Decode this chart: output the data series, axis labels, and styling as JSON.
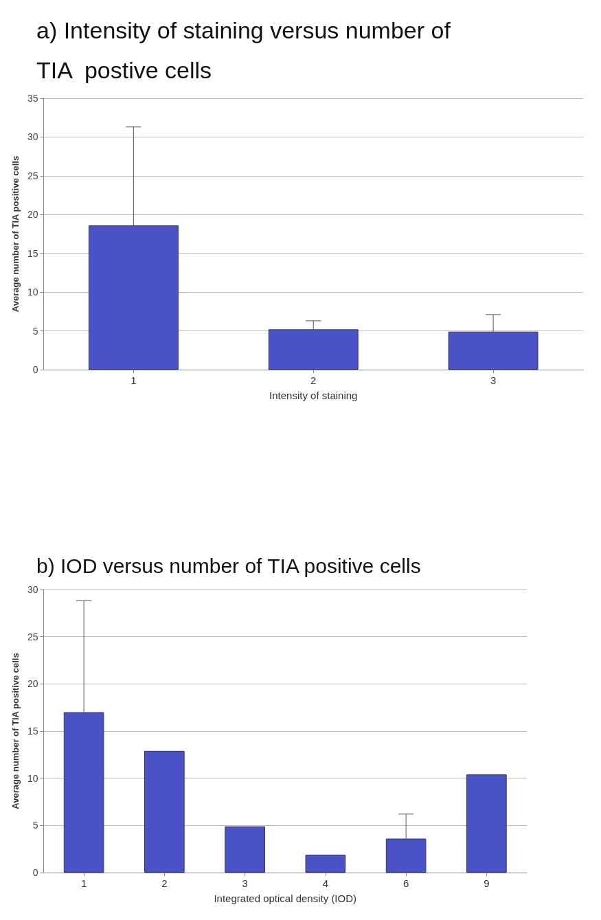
{
  "chart_data": [
    {
      "type": "bar",
      "title": "a) Intensity of staining versus number of\nTIA  postive cells",
      "xlabel": "Intensity of staining",
      "ylabel": "Average number of TIA positive cells",
      "categories": [
        "1",
        "2",
        "3"
      ],
      "values": [
        18.6,
        5.2,
        4.9
      ],
      "errors": [
        [
          18.6,
          31.3
        ],
        [
          5.2,
          6.3
        ],
        [
          4.9,
          7.1
        ]
      ],
      "color": "#4a52c8",
      "ylim": [
        0,
        35
      ],
      "yticks": [
        0,
        5,
        10,
        15,
        20,
        25,
        30,
        35
      ],
      "grid": "y"
    },
    {
      "type": "bar",
      "title": "b) IOD versus number of TIA positive cells",
      "xlabel": "Integrated optical density (IOD)",
      "ylabel": "Average number of TIA positive cells",
      "categories": [
        "1",
        "2",
        "3",
        "4",
        "6",
        "9"
      ],
      "values": [
        17.0,
        12.9,
        4.9,
        1.9,
        3.6,
        10.4
      ],
      "errors": [
        [
          17.0,
          28.8
        ],
        null,
        null,
        null,
        [
          3.6,
          6.2
        ],
        null
      ],
      "color": "#4a52c8",
      "ylim": [
        0,
        30
      ],
      "yticks": [
        0,
        5,
        10,
        15,
        20,
        25,
        30
      ],
      "grid": "y"
    }
  ]
}
